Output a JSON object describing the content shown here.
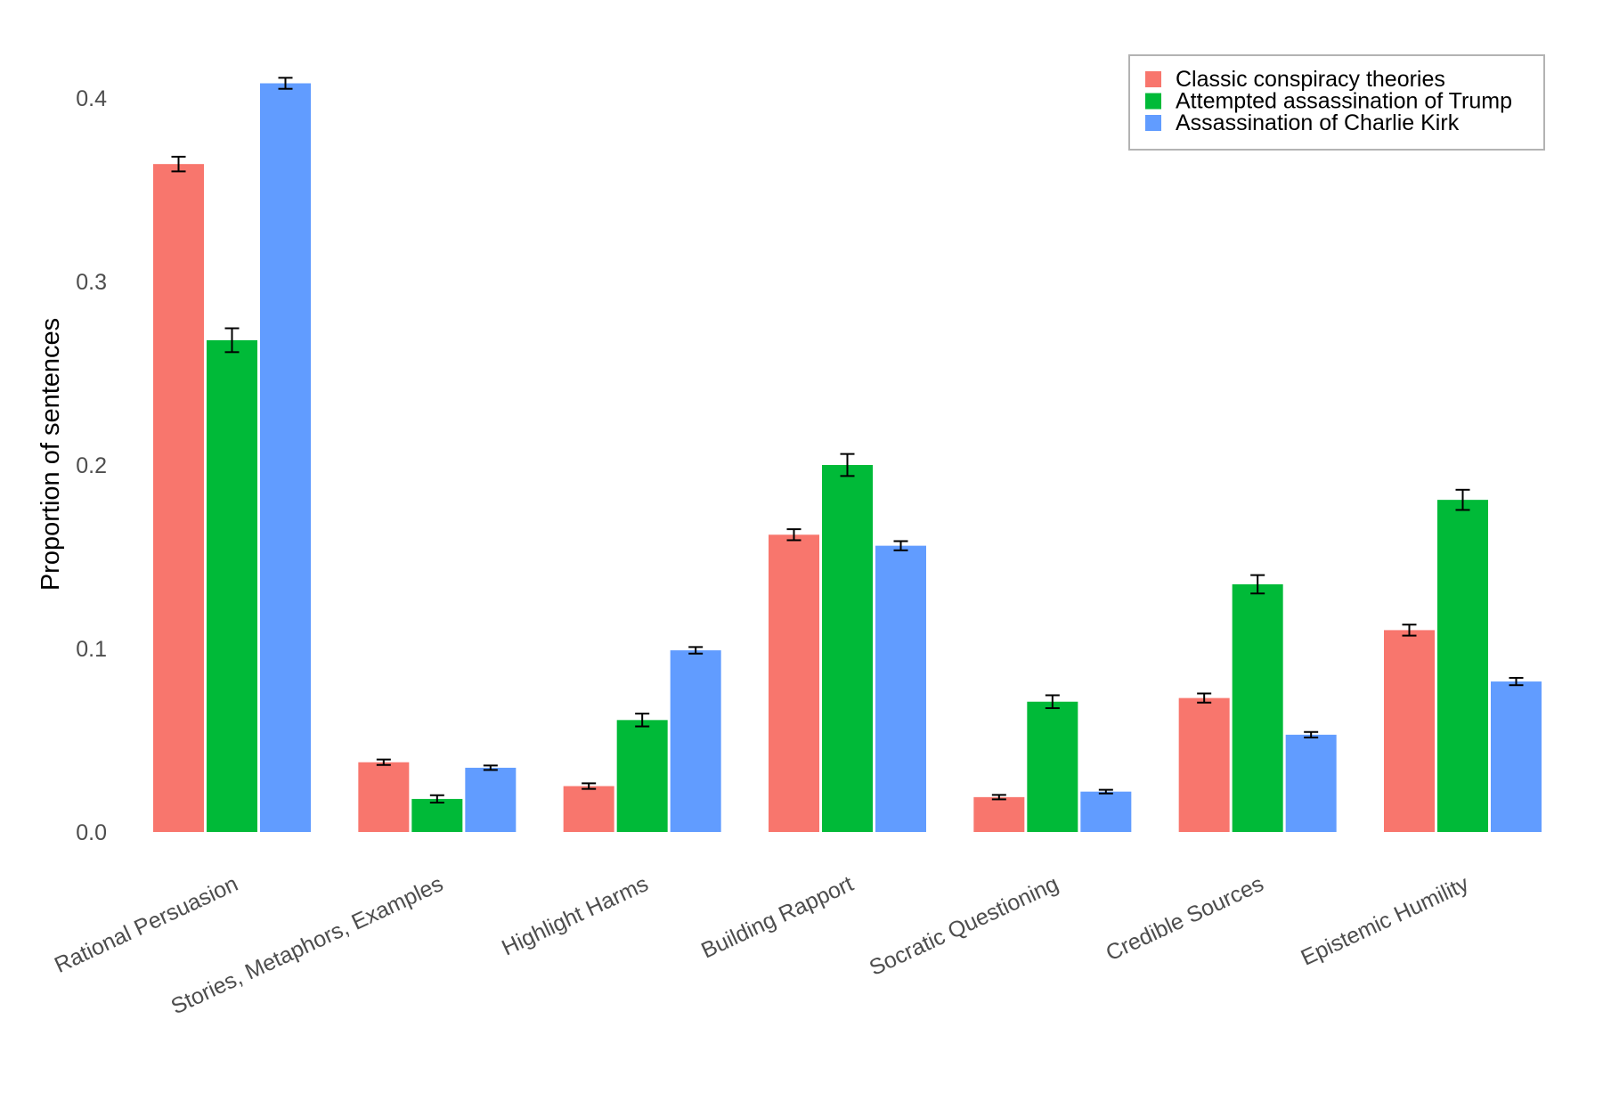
{
  "chart_data": {
    "type": "bar",
    "title": "",
    "xlabel": "",
    "ylabel": "Proportion of sentences",
    "ylim": [
      0,
      0.42
    ],
    "yticks": [
      0.0,
      0.1,
      0.2,
      0.3,
      0.4
    ],
    "ytick_labels": [
      "0.0",
      "0.1",
      "0.2",
      "0.3",
      "0.4"
    ],
    "grid": false,
    "legend_position": "top-right",
    "categories": [
      "Rational Persuasion",
      "Stories, Metaphors, Examples",
      "Highlight Harms",
      "Building Rapport",
      "Socratic Questioning",
      "Credible Sources",
      "Epistemic Humility"
    ],
    "series": [
      {
        "name": "Classic conspiracy theories",
        "color": "#F8766D",
        "values": [
          0.364,
          0.038,
          0.025,
          0.162,
          0.019,
          0.073,
          0.11
        ],
        "errors": [
          0.004,
          0.0015,
          0.0015,
          0.003,
          0.0012,
          0.0025,
          0.003
        ]
      },
      {
        "name": "Attempted assassination of Trump",
        "color": "#00BA38",
        "values": [
          0.268,
          0.018,
          0.061,
          0.2,
          0.071,
          0.135,
          0.181
        ],
        "errors": [
          0.0065,
          0.002,
          0.0035,
          0.006,
          0.0035,
          0.005,
          0.0055
        ]
      },
      {
        "name": "Assassination of Charlie Kirk",
        "color": "#619CFF",
        "values": [
          0.408,
          0.035,
          0.099,
          0.156,
          0.022,
          0.053,
          0.082
        ],
        "errors": [
          0.003,
          0.0012,
          0.0018,
          0.0025,
          0.001,
          0.0015,
          0.002
        ]
      }
    ]
  }
}
